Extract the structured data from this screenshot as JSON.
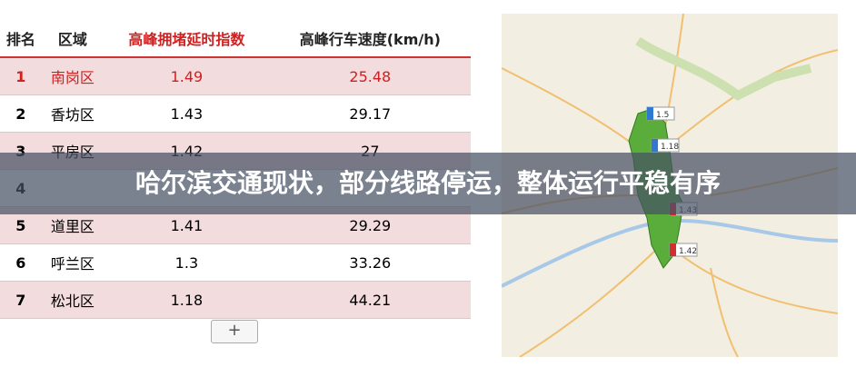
{
  "table": {
    "header": [
      "排名",
      "区域",
      "高峰拥堵延时指数",
      "高峰行车速度(km/h)"
    ],
    "rows": [
      [
        "1",
        "南岗区",
        "1.49",
        "25.48"
      ],
      [
        "2",
        "香坊区",
        "1.43",
        "29.17"
      ],
      [
        "3",
        "平房区",
        "1.42",
        "27"
      ],
      [
        "4"
      ],
      [
        "5",
        "道里区",
        "1.41",
        "29.29"
      ],
      [
        "6",
        "呼兰区",
        "1.3",
        "33.26"
      ],
      [
        "7",
        "松北区",
        "1.18",
        "44.21"
      ]
    ]
  },
  "button": "+",
  "map": {
    "labels": [
      "1.5",
      "1.18",
      "1.43",
      "1.42"
    ]
  },
  "banner": "哈尔滨交通现状，部分线路停运，整体运行平稳有序"
}
